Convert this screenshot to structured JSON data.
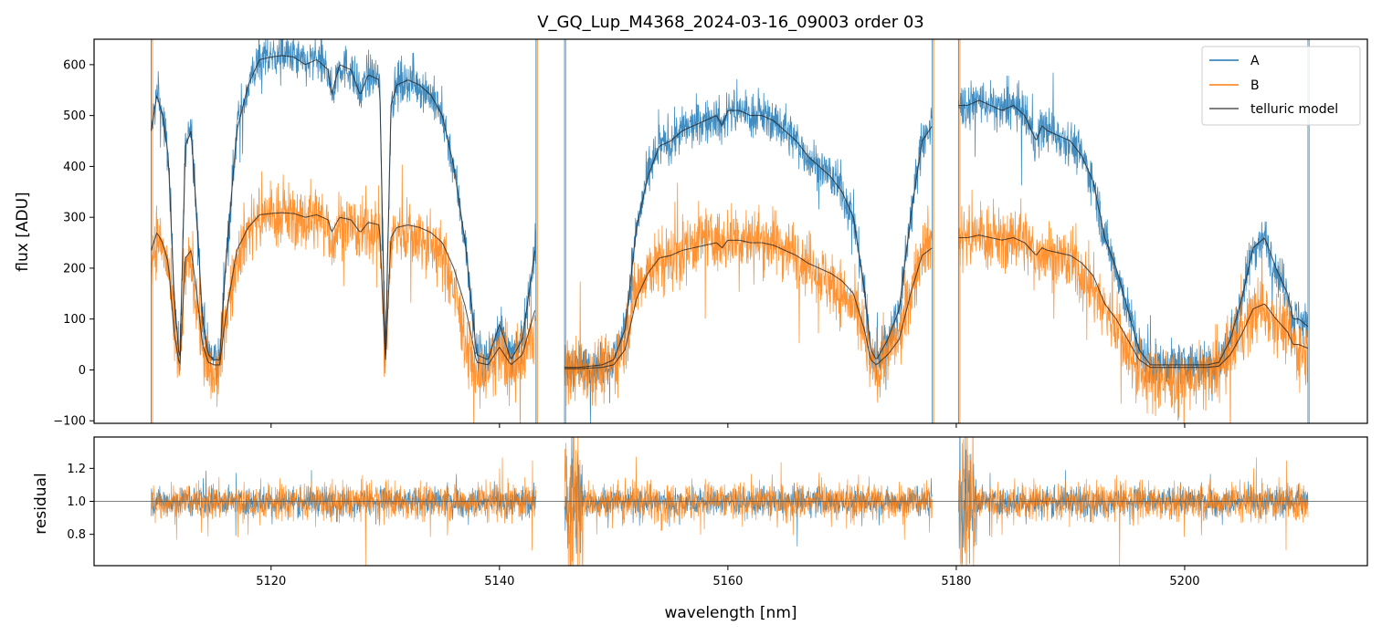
{
  "chart_data": [
    {
      "type": "line",
      "title": "V_GQ_Lup_M4368_2024-03-16_09003  order 03",
      "xlabel": "",
      "ylabel": "flux [ADU]",
      "xlim": [
        5104.5,
        5216.0
      ],
      "ylim": [
        -105,
        650
      ],
      "yticks": [
        -100,
        0,
        100,
        200,
        300,
        400,
        500,
        600
      ],
      "ytick_labels": [
        "−100",
        "0",
        "100",
        "200",
        "300",
        "400",
        "500",
        "600"
      ],
      "xticks": [
        5120,
        5140,
        5160,
        5180,
        5200
      ],
      "legend_position": "top-right",
      "grid": false,
      "segments": [
        [
          5109.5,
          5143.2
        ],
        [
          5145.7,
          5177.9
        ],
        [
          5180.2,
          5210.8
        ]
      ],
      "series": [
        {
          "name": "A",
          "color": "#1f77b4",
          "noise": 22,
          "x": [
            5109.5,
            5110.0,
            5110.5,
            5111.0,
            5111.5,
            5112.0,
            5112.5,
            5113.0,
            5113.5,
            5114.0,
            5114.5,
            5115.0,
            5115.5,
            5116.0,
            5117.0,
            5118.0,
            5119.0,
            5120.0,
            5121.0,
            5122.0,
            5123.0,
            5124.0,
            5125.0,
            5125.3,
            5126.0,
            5127.0,
            5127.8,
            5128.5,
            5129.5,
            5130.0,
            5130.5,
            5131.0,
            5132.0,
            5133.0,
            5134.0,
            5135.0,
            5136.0,
            5137.0,
            5138.0,
            5139.0,
            5140.0,
            5141.0,
            5142.0,
            5143.2,
            null,
            5145.7,
            5147.0,
            5149.0,
            5150.0,
            5151.0,
            5152.0,
            5153.0,
            5154.0,
            5155.0,
            5156.0,
            5157.0,
            5158.0,
            5159.0,
            5159.5,
            5160.0,
            5161.0,
            5162.0,
            5163.0,
            5164.0,
            5165.0,
            5166.0,
            5167.0,
            5168.0,
            5169.0,
            5170.0,
            5171.0,
            5172.0,
            5172.5,
            5173.0,
            5174.0,
            5175.0,
            5176.0,
            5177.0,
            5177.9,
            null,
            5180.2,
            5181.0,
            5182.0,
            5183.0,
            5184.0,
            5185.0,
            5186.0,
            5187.0,
            5187.5,
            5188.0,
            5189.0,
            5190.0,
            5191.0,
            5192.0,
            5193.0,
            5194.0,
            5195.0,
            5196.0,
            5197.0,
            5198.0,
            5200.0,
            5202.0,
            5203.0,
            5204.0,
            5205.0,
            5206.0,
            5207.0,
            5208.0,
            5209.0,
            5209.5,
            5210.0,
            5210.8
          ],
          "y": [
            470,
            540,
            500,
            420,
            150,
            10,
            440,
            470,
            300,
            100,
            30,
            20,
            20,
            200,
            470,
            560,
            610,
            615,
            618,
            615,
            600,
            610,
            590,
            540,
            600,
            590,
            540,
            580,
            570,
            20,
            520,
            560,
            570,
            560,
            540,
            500,
            400,
            250,
            30,
            20,
            90,
            20,
            60,
            250,
            null,
            5,
            5,
            10,
            20,
            80,
            280,
            380,
            440,
            450,
            470,
            480,
            490,
            500,
            480,
            510,
            510,
            500,
            500,
            490,
            470,
            450,
            420,
            400,
            380,
            350,
            300,
            150,
            40,
            20,
            60,
            120,
            300,
            450,
            480,
            null,
            520,
            520,
            530,
            520,
            510,
            520,
            500,
            450,
            480,
            470,
            460,
            450,
            420,
            370,
            260,
            200,
            120,
            40,
            10,
            10,
            10,
            10,
            15,
            60,
            140,
            240,
            260,
            200,
            150,
            100,
            100,
            85
          ]
        },
        {
          "name": "B",
          "color": "#ff7f0e",
          "noise": 32,
          "x": [
            5109.5,
            5110.0,
            5110.5,
            5111.0,
            5111.5,
            5112.0,
            5112.5,
            5113.0,
            5113.5,
            5114.0,
            5114.5,
            5115.0,
            5115.5,
            5116.0,
            5117.0,
            5118.0,
            5119.0,
            5120.0,
            5121.0,
            5122.0,
            5123.0,
            5124.0,
            5125.0,
            5125.3,
            5126.0,
            5127.0,
            5127.8,
            5128.5,
            5129.5,
            5130.0,
            5130.5,
            5131.0,
            5132.0,
            5133.0,
            5134.0,
            5135.0,
            5136.0,
            5137.0,
            5138.0,
            5139.0,
            5140.0,
            5141.0,
            5142.0,
            5143.2,
            null,
            5145.7,
            5147.0,
            5149.0,
            5150.0,
            5151.0,
            5152.0,
            5153.0,
            5154.0,
            5155.0,
            5156.0,
            5157.0,
            5158.0,
            5159.0,
            5159.5,
            5160.0,
            5161.0,
            5162.0,
            5163.0,
            5164.0,
            5165.0,
            5166.0,
            5167.0,
            5168.0,
            5169.0,
            5170.0,
            5171.0,
            5172.0,
            5172.5,
            5173.0,
            5174.0,
            5175.0,
            5176.0,
            5177.0,
            5177.9,
            null,
            5180.2,
            5181.0,
            5182.0,
            5183.0,
            5184.0,
            5185.0,
            5186.0,
            5187.0,
            5187.5,
            5188.0,
            5189.0,
            5190.0,
            5191.0,
            5192.0,
            5193.0,
            5194.0,
            5195.0,
            5196.0,
            5197.0,
            5198.0,
            5200.0,
            5202.0,
            5203.0,
            5204.0,
            5205.0,
            5206.0,
            5207.0,
            5208.0,
            5209.0,
            5209.5,
            5210.0,
            5210.8
          ],
          "y": [
            220,
            260,
            240,
            200,
            80,
            -10,
            200,
            210,
            140,
            40,
            -10,
            -20,
            0,
            100,
            220,
            280,
            300,
            305,
            305,
            300,
            290,
            300,
            290,
            250,
            290,
            285,
            260,
            280,
            280,
            0,
            260,
            275,
            270,
            260,
            250,
            220,
            160,
            60,
            -20,
            0,
            30,
            -10,
            20,
            90,
            null,
            0,
            0,
            5,
            10,
            60,
            160,
            200,
            210,
            220,
            230,
            250,
            260,
            255,
            240,
            260,
            260,
            255,
            255,
            250,
            240,
            230,
            210,
            190,
            170,
            150,
            120,
            60,
            10,
            0,
            40,
            60,
            150,
            240,
            260,
            null,
            260,
            265,
            265,
            260,
            250,
            260,
            255,
            220,
            240,
            230,
            220,
            210,
            190,
            160,
            120,
            90,
            40,
            0,
            -20,
            -20,
            -20,
            -10,
            0,
            30,
            80,
            110,
            120,
            100,
            80,
            50,
            40,
            30
          ]
        },
        {
          "name": "telluric model",
          "color": "#555555",
          "scales": {
            "A": 1.0,
            "B": 0.5
          },
          "x": [
            5109.5,
            5110.0,
            5110.5,
            5111.0,
            5111.5,
            5112.0,
            5112.5,
            5113.0,
            5113.5,
            5114.0,
            5114.5,
            5115.0,
            5115.5,
            5116.0,
            5117.0,
            5118.0,
            5119.0,
            5120.0,
            5121.0,
            5122.0,
            5123.0,
            5124.0,
            5125.0,
            5125.3,
            5126.0,
            5127.0,
            5127.8,
            5128.5,
            5129.5,
            5130.0,
            5130.5,
            5131.0,
            5132.0,
            5133.0,
            5134.0,
            5135.0,
            5136.0,
            5137.0,
            5138.0,
            5139.0,
            5140.0,
            5141.0,
            5142.0,
            5143.2,
            null,
            5145.7,
            5147.0,
            5149.0,
            5150.0,
            5151.0,
            5152.0,
            5153.0,
            5154.0,
            5155.0,
            5156.0,
            5157.0,
            5158.0,
            5159.0,
            5159.5,
            5160.0,
            5161.0,
            5162.0,
            5163.0,
            5164.0,
            5165.0,
            5166.0,
            5167.0,
            5168.0,
            5169.0,
            5170.0,
            5171.0,
            5172.0,
            5172.5,
            5173.0,
            5174.0,
            5175.0,
            5176.0,
            5177.0,
            5177.9,
            null,
            5180.2,
            5181.0,
            5182.0,
            5183.0,
            5184.0,
            5185.0,
            5186.0,
            5187.0,
            5187.5,
            5188.0,
            5189.0,
            5190.0,
            5191.0,
            5192.0,
            5193.0,
            5194.0,
            5195.0,
            5196.0,
            5197.0,
            5198.0,
            5200.0,
            5202.0,
            5203.0,
            5204.0,
            5205.0,
            5206.0,
            5207.0,
            5208.0,
            5209.0,
            5209.5,
            5210.0,
            5210.8
          ],
          "y": [
            470,
            540,
            500,
            420,
            150,
            10,
            440,
            470,
            300,
            100,
            30,
            20,
            20,
            200,
            470,
            560,
            610,
            615,
            618,
            615,
            600,
            610,
            590,
            540,
            600,
            590,
            540,
            580,
            570,
            20,
            520,
            560,
            570,
            560,
            540,
            500,
            400,
            250,
            30,
            20,
            90,
            20,
            60,
            250,
            null,
            5,
            5,
            10,
            20,
            80,
            280,
            380,
            440,
            450,
            470,
            480,
            490,
            500,
            480,
            510,
            510,
            500,
            500,
            490,
            470,
            450,
            420,
            400,
            380,
            350,
            300,
            150,
            40,
            20,
            60,
            120,
            300,
            450,
            480,
            null,
            520,
            520,
            530,
            520,
            510,
            520,
            500,
            450,
            480,
            470,
            460,
            450,
            420,
            370,
            260,
            200,
            120,
            40,
            10,
            10,
            10,
            10,
            15,
            60,
            140,
            240,
            260,
            200,
            150,
            100,
            100,
            85
          ]
        }
      ]
    },
    {
      "type": "line",
      "title": "",
      "xlabel": "wavelength [nm]",
      "ylabel": "residual",
      "xlim": [
        5104.5,
        5216.0
      ],
      "ylim": [
        0.61,
        1.39
      ],
      "yticks": [
        0.8,
        1.0,
        1.2
      ],
      "ytick_labels": [
        "0.8",
        "1.0",
        "1.2"
      ],
      "xticks": [
        5120,
        5140,
        5160,
        5180,
        5200
      ],
      "xtick_labels": [
        "5120",
        "5140",
        "5160",
        "5180",
        "5200"
      ],
      "reference_line": 1.0,
      "grid": false,
      "segments": [
        [
          5109.5,
          5143.2
        ],
        [
          5145.7,
          5177.9
        ],
        [
          5180.2,
          5210.8
        ]
      ],
      "series": [
        {
          "name": "A",
          "color": "#1f77b4",
          "center": 1.0,
          "spread": 0.07
        },
        {
          "name": "B",
          "color": "#ff7f0e",
          "center": 1.0,
          "spread": 0.1
        }
      ]
    }
  ]
}
